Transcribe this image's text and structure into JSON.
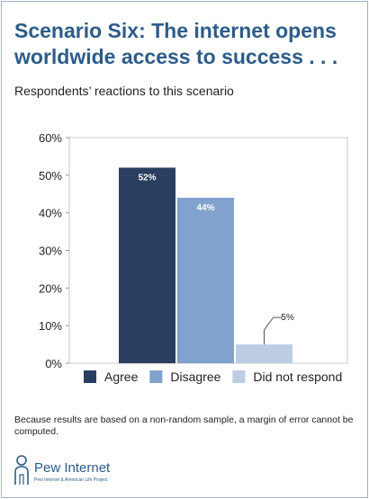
{
  "title": "Scenario Six: The internet opens worldwide access to success . . .",
  "subtitle": "Respondents’ reactions to this scenario",
  "footnote": "Because results are based on a non-random sample, a margin of error cannot be computed.",
  "logo": {
    "name": "Pew Internet",
    "tagline": "Pew Internet & American Life Project",
    "icon": "person-keyhole-icon",
    "color": "#2d5c89"
  },
  "chart_data": {
    "type": "bar",
    "categories": [
      "Agree",
      "Disagree",
      "Did not respond"
    ],
    "values": [
      52,
      44,
      5
    ],
    "value_labels": [
      "52%",
      "44%",
      "5%"
    ],
    "colors": [
      "#2a3f5f",
      "#80a2cc",
      "#bccde4"
    ],
    "ylim": [
      0,
      60
    ],
    "yticks": [
      "0%",
      "10%",
      "20%",
      "30%",
      "40%",
      "50%",
      "60%"
    ],
    "legend_position": "bottom",
    "grid": false
  }
}
